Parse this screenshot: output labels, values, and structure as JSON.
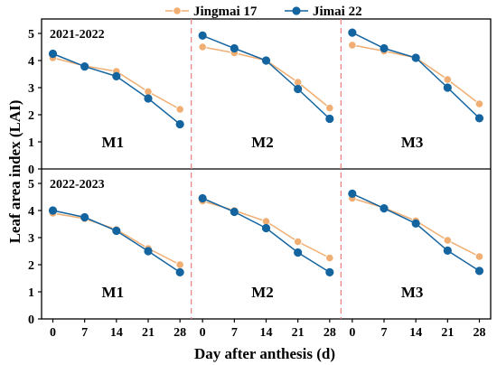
{
  "chart_data": {
    "type": "line",
    "ylabel": "Leaf area index (LAI)",
    "xlabel": "Day after anthesis (d)",
    "x": [
      0,
      7,
      14,
      21,
      28
    ],
    "xticks": [
      "0",
      "7",
      "14",
      "21",
      "28"
    ],
    "ylim": [
      0,
      5.5
    ],
    "yticks": [
      "0",
      "1",
      "2",
      "3",
      "4",
      "5"
    ],
    "legend_position": "top-center",
    "series_styles": [
      {
        "name": "Jingmai 17",
        "color": "#F0AE72"
      },
      {
        "name": "Jimai 22",
        "color": "#1464A0"
      }
    ],
    "separator_color": "#E87C7C",
    "rows": [
      {
        "season": "2021-2022",
        "panels": [
          {
            "label": "M1",
            "series": [
              {
                "name": "Jingmai 17",
                "values": [
                  4.1,
                  3.8,
                  3.6,
                  2.85,
                  2.2
                ]
              },
              {
                "name": "Jimai 22",
                "values": [
                  4.25,
                  3.78,
                  3.42,
                  2.6,
                  1.65
                ]
              }
            ]
          },
          {
            "label": "M2",
            "series": [
              {
                "name": "Jingmai 17",
                "values": [
                  4.5,
                  4.28,
                  4.0,
                  3.2,
                  2.25
                ]
              },
              {
                "name": "Jimai 22",
                "values": [
                  4.92,
                  4.45,
                  4.0,
                  2.95,
                  1.85
                ]
              }
            ]
          },
          {
            "label": "M3",
            "series": [
              {
                "name": "Jingmai 17",
                "values": [
                  4.57,
                  4.35,
                  4.1,
                  3.3,
                  2.4
                ]
              },
              {
                "name": "Jimai 22",
                "values": [
                  5.03,
                  4.45,
                  4.1,
                  3.0,
                  1.87
                ]
              }
            ]
          }
        ]
      },
      {
        "season": "2022-2023",
        "panels": [
          {
            "label": "M1",
            "series": [
              {
                "name": "Jingmai 17",
                "values": [
                  3.9,
                  3.7,
                  3.3,
                  2.6,
                  2.0
                ]
              },
              {
                "name": "Jimai 22",
                "values": [
                  4.0,
                  3.75,
                  3.25,
                  2.5,
                  1.72
                ]
              }
            ]
          },
          {
            "label": "M2",
            "series": [
              {
                "name": "Jingmai 17",
                "values": [
                  4.35,
                  4.0,
                  3.6,
                  2.85,
                  2.25
                ]
              },
              {
                "name": "Jimai 22",
                "values": [
                  4.45,
                  3.95,
                  3.35,
                  2.45,
                  1.72
                ]
              }
            ]
          },
          {
            "label": "M3",
            "series": [
              {
                "name": "Jingmai 17",
                "values": [
                  4.45,
                  4.1,
                  3.62,
                  2.9,
                  2.3
                ]
              },
              {
                "name": "Jimai 22",
                "values": [
                  4.62,
                  4.08,
                  3.52,
                  2.52,
                  1.77
                ]
              }
            ]
          }
        ]
      }
    ]
  }
}
